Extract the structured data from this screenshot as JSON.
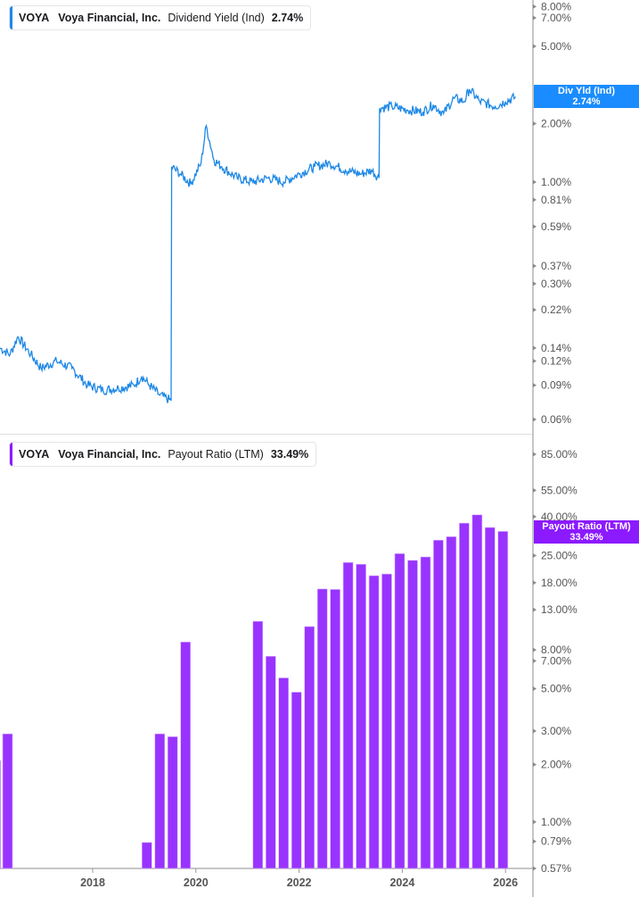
{
  "chart_data": [
    {
      "type": "line",
      "title": "VOYA Voya Financial, Inc. Dividend Yield (Ind)",
      "legend": {
        "ticker": "VOYA",
        "company": "Voya Financial, Inc.",
        "metric": "Dividend Yield (Ind)",
        "value": "2.74%"
      },
      "color": "#1e88e5",
      "yscale": "log",
      "ylim": [
        0.055,
        9.0
      ],
      "ytick_labels": [
        "8.00%",
        "7.00%",
        "5.00%",
        "2.00%",
        "1.00%",
        "0.81%",
        "0.59%",
        "0.37%",
        "0.30%",
        "0.22%",
        "0.14%",
        "0.12%",
        "0.09%",
        "0.06%"
      ],
      "ytick_values": [
        8.0,
        7.0,
        5.0,
        2.0,
        1.0,
        0.81,
        0.59,
        0.37,
        0.3,
        0.22,
        0.14,
        0.12,
        0.09,
        0.06
      ],
      "last_value_tag": {
        "label": "Div Yld (Ind)",
        "value": "2.74%"
      },
      "x": [
        2016.2,
        2016.4,
        2016.55,
        2016.8,
        2017.0,
        2017.3,
        2017.6,
        2017.9,
        2018.2,
        2018.5,
        2018.8,
        2018.95,
        2019.1,
        2019.3,
        2019.52,
        2019.53,
        2019.7,
        2019.9,
        2020.1,
        2020.2,
        2020.35,
        2020.5,
        2020.8,
        2021.1,
        2021.4,
        2021.7,
        2022.0,
        2022.3,
        2022.6,
        2022.9,
        2023.2,
        2023.4,
        2023.55,
        2023.56,
        2023.8,
        2024.1,
        2024.4,
        2024.6,
        2024.8,
        2025.0,
        2025.2,
        2025.3,
        2025.5,
        2025.8,
        2026.0,
        2026.2
      ],
      "values": [
        0.14,
        0.13,
        0.16,
        0.13,
        0.11,
        0.12,
        0.11,
        0.09,
        0.085,
        0.087,
        0.09,
        0.1,
        0.09,
        0.08,
        0.075,
        1.2,
        1.1,
        0.98,
        1.25,
        1.95,
        1.3,
        1.2,
        1.05,
        1.0,
        1.05,
        1.0,
        1.1,
        1.2,
        1.25,
        1.15,
        1.1,
        1.15,
        1.05,
        2.4,
        2.45,
        2.35,
        2.3,
        2.5,
        2.25,
        2.7,
        2.6,
        3.0,
        2.6,
        2.45,
        2.6,
        2.74
      ],
      "xlabel": "",
      "ylabel": "",
      "grid": false
    },
    {
      "type": "bar",
      "title": "VOYA Voya Financial, Inc. Payout Ratio (LTM)",
      "legend": {
        "ticker": "VOYA",
        "company": "Voya Financial, Inc.",
        "metric": "Payout Ratio (LTM)",
        "value": "33.49%"
      },
      "color": "#9933ff",
      "yscale": "log",
      "ylim": [
        0.57,
        100
      ],
      "ytick_labels": [
        "85.00%",
        "55.00%",
        "40.00%",
        "25.00%",
        "18.00%",
        "13.00%",
        "8.00%",
        "7.00%",
        "5.00%",
        "3.00%",
        "2.00%",
        "1.00%",
        "0.79%",
        "0.57%"
      ],
      "ytick_values": [
        85,
        55,
        40,
        25,
        18,
        13,
        8,
        7,
        5,
        3,
        2,
        1,
        0.79,
        0.57
      ],
      "last_value_tag": {
        "label": "Payout Ratio (LTM)",
        "value": "33.49%"
      },
      "categories": [
        "2016Q2",
        "2016Q3",
        "2019Q1",
        "2019Q2",
        "2019Q3",
        "2019Q4",
        "2021Q2",
        "2021Q3",
        "2021Q4",
        "2022Q1",
        "2022Q2",
        "2022Q3",
        "2022Q4",
        "2023Q1",
        "2023Q2",
        "2023Q3",
        "2023Q4",
        "2024Q1",
        "2024Q2",
        "2024Q3",
        "2024Q4",
        "2025Q1",
        "2025Q2",
        "2025Q3",
        "2025Q4",
        "2026Q1"
      ],
      "x": [
        2016.12,
        2016.35,
        2019.05,
        2019.3,
        2019.55,
        2019.8,
        2021.2,
        2021.45,
        2021.7,
        2021.95,
        2022.2,
        2022.45,
        2022.7,
        2022.95,
        2023.2,
        2023.45,
        2023.7,
        2023.95,
        2024.2,
        2024.45,
        2024.7,
        2024.95,
        2025.2,
        2025.45,
        2025.7,
        2025.95
      ],
      "values": [
        2.1,
        2.9,
        0.78,
        2.9,
        2.8,
        8.8,
        11.3,
        7.4,
        5.7,
        4.8,
        10.6,
        16.7,
        16.6,
        23.0,
        22.5,
        19.6,
        20.0,
        25.6,
        23.6,
        24.6,
        30.1,
        31.4,
        37.0,
        40.9,
        35.1,
        33.49
      ],
      "xlabel": "",
      "ylabel": "",
      "grid": false
    }
  ],
  "x_axis": {
    "tick_labels": [
      "2018",
      "2020",
      "2022",
      "2024",
      "2026"
    ],
    "tick_values": [
      2018,
      2020,
      2022,
      2024,
      2026
    ]
  },
  "colors": {
    "div_yield": "#1e88e5",
    "payout": "#9933ff",
    "tag_blue": "#1a8cff",
    "tag_purple": "#8c1aff",
    "axis": "#b3b3b3",
    "label": "#555555"
  }
}
